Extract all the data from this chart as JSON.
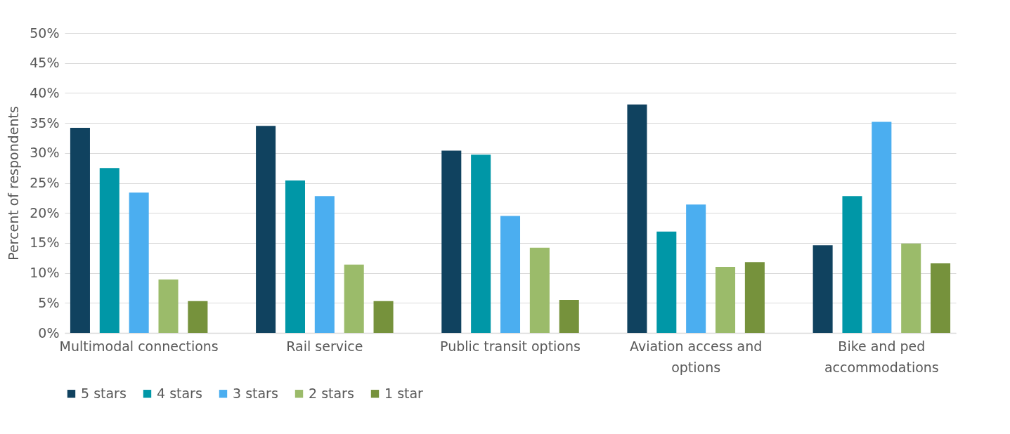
{
  "chart_data": {
    "type": "bar",
    "ylabel": "Percent of respondents",
    "categories": [
      "Multimodal connections",
      "Rail service",
      "Public transit options",
      "Aviation access and options",
      "Bike and ped accommodations"
    ],
    "series": [
      {
        "name": "5 stars",
        "color": "#10425f",
        "values": [
          34.2,
          34.5,
          30.4,
          38.1,
          14.6
        ]
      },
      {
        "name": "4 stars",
        "color": "#0097a7",
        "values": [
          27.5,
          25.4,
          29.7,
          16.9,
          22.8
        ]
      },
      {
        "name": "3 stars",
        "color": "#4baef0",
        "values": [
          23.4,
          22.8,
          19.5,
          21.4,
          35.2
        ]
      },
      {
        "name": "2 stars",
        "color": "#9bbb6a",
        "values": [
          8.9,
          11.4,
          14.2,
          11.0,
          14.9
        ]
      },
      {
        "name": "1 star",
        "color": "#76923c",
        "values": [
          5.3,
          5.3,
          5.5,
          11.8,
          11.6
        ]
      }
    ],
    "ylim": [
      0,
      50
    ],
    "yticks": [
      {
        "value": 0,
        "label": "0%"
      },
      {
        "value": 5,
        "label": "5%"
      },
      {
        "value": 10,
        "label": "10%"
      },
      {
        "value": 15,
        "label": "15%"
      },
      {
        "value": 20,
        "label": "20%"
      },
      {
        "value": 25,
        "label": "25%"
      },
      {
        "value": 30,
        "label": "30%"
      },
      {
        "value": 35,
        "label": "35%"
      },
      {
        "value": 40,
        "label": "40%"
      },
      {
        "value": 45,
        "label": "45%"
      },
      {
        "value": 50,
        "label": "50%"
      }
    ],
    "grid": "y",
    "legend": "bottom"
  }
}
